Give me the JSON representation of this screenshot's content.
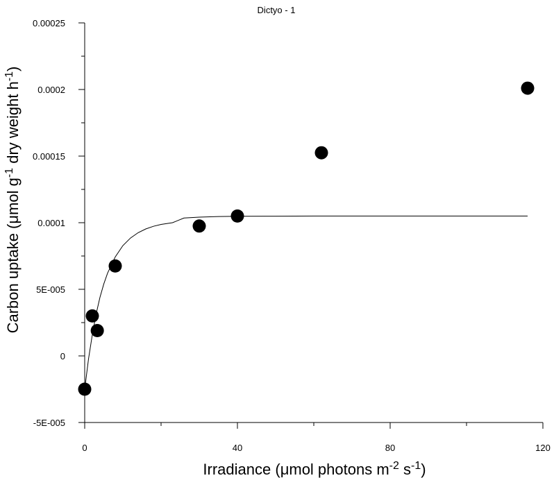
{
  "chart_data": {
    "type": "scatter",
    "title": "Dictyo - 1",
    "xlabel": {
      "pre": "Irradiance (",
      "mu": "μ",
      "mid": "mol photons m",
      "sup1": "-2",
      "mid2": " s",
      "sup2": "-1",
      "post": ")"
    },
    "ylabel": {
      "pre": "Carbon uptake (",
      "mu": "μ",
      "mid": "mol g",
      "sup1": "-1",
      "mid2": " dry weight h",
      "sup2": "-1",
      "post": ")"
    },
    "xlim": [
      0,
      120
    ],
    "ylim": [
      -5e-05,
      0.00025
    ],
    "x_ticks": [
      0,
      40,
      80,
      120
    ],
    "x_tick_labels": [
      "0",
      "40",
      "80",
      "120"
    ],
    "x_minor_ticks": [
      20,
      60,
      100
    ],
    "y_ticks": [
      -5e-05,
      0,
      5e-05,
      0.0001,
      0.00015,
      0.0002,
      0.00025
    ],
    "y_tick_labels": [
      "-5E-005",
      "0",
      "5E-005",
      "0.0001",
      "0.00015",
      "0.0002",
      "0.00025"
    ],
    "y_minor_ticks": [
      -2.5e-05,
      2.5e-05,
      7.5e-05,
      0.000125,
      0.000175,
      0.000225
    ],
    "grid": false,
    "points": [
      {
        "x": 0,
        "y": -2.5e-05
      },
      {
        "x": 2,
        "y": 3e-05
      },
      {
        "x": 3.3,
        "y": 1.9e-05
      },
      {
        "x": 8,
        "y": 6.75e-05
      },
      {
        "x": 30,
        "y": 9.75e-05
      },
      {
        "x": 40,
        "y": 0.000105
      },
      {
        "x": 62,
        "y": 0.0001525
      },
      {
        "x": 116,
        "y": 0.000201
      }
    ],
    "fit_curve": {
      "x": [
        0,
        1,
        2,
        3,
        4,
        5,
        6,
        8,
        10,
        12,
        14,
        16,
        18,
        20,
        23,
        26,
        30,
        35,
        40,
        50,
        60,
        80,
        100,
        116
      ],
      "y": [
        -2.5e-05,
        -2.3e-06,
        1.6e-05,
        3.15e-05,
        4.4e-05,
        5.4e-05,
        6.22e-05,
        7.43e-05,
        8.28e-05,
        8.85e-05,
        9.25e-05,
        9.53e-05,
        9.73e-05,
        9.87e-05,
        0.0001,
        0.0001035,
        0.0001042,
        0.0001046,
        0.0001048,
        0.0001049,
        0.000105,
        0.000105,
        0.000105,
        0.000105
      ]
    }
  }
}
